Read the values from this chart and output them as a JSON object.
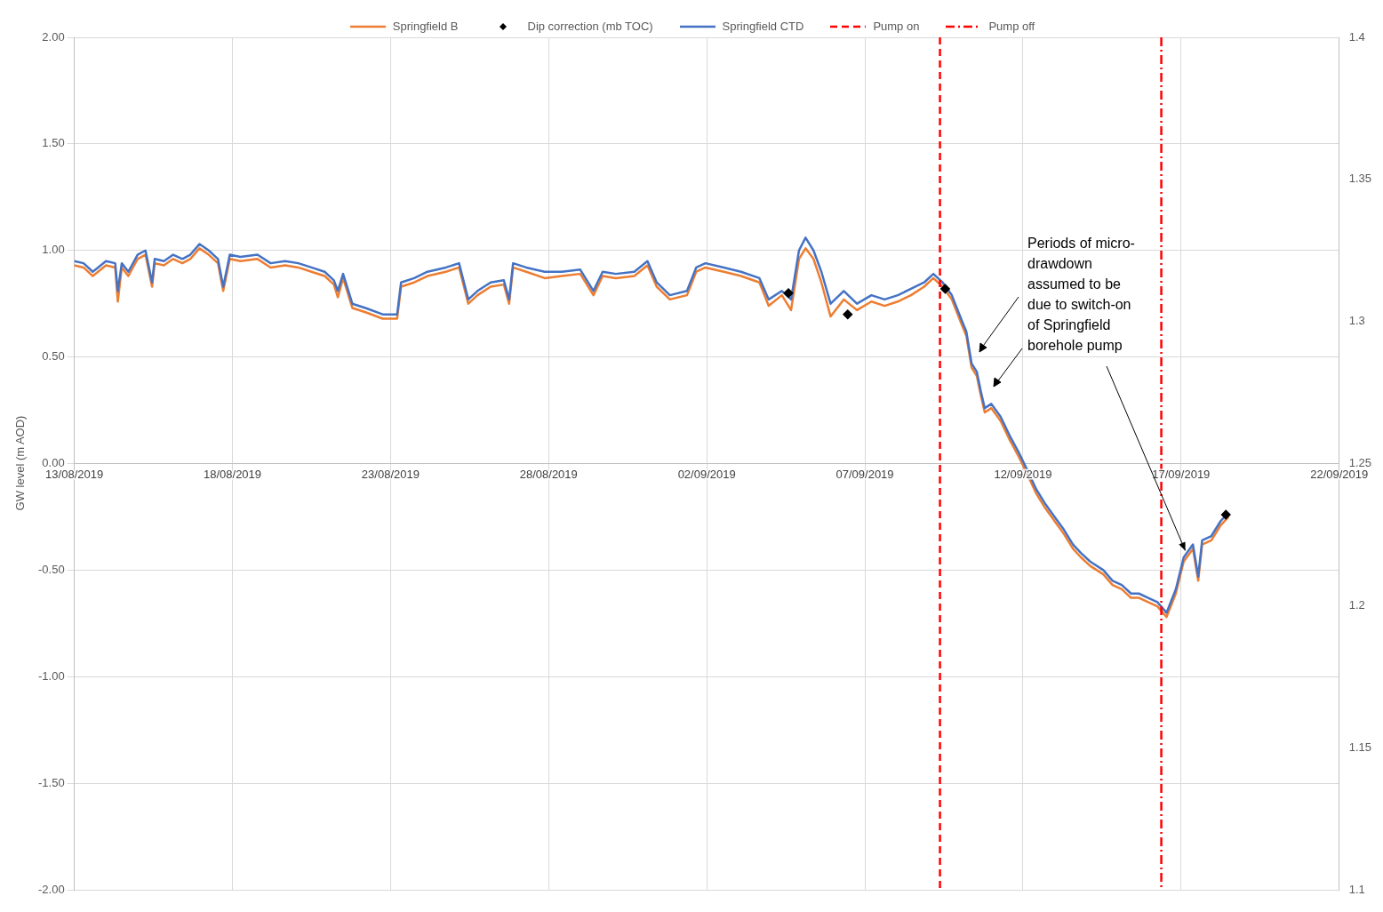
{
  "chart_data": {
    "type": "line",
    "ylabel": "GW level (m AOD)",
    "xlim": [
      "2019-08-13",
      "2019-09-22"
    ],
    "xticks": [
      {
        "value": "2019-08-13",
        "label": "13/08/2019"
      },
      {
        "value": "2019-08-18",
        "label": "18/08/2019"
      },
      {
        "value": "2019-08-23",
        "label": "23/08/2019"
      },
      {
        "value": "2019-08-28",
        "label": "28/08/2019"
      },
      {
        "value": "2019-09-02",
        "label": "02/09/2019"
      },
      {
        "value": "2019-09-07",
        "label": "07/09/2019"
      },
      {
        "value": "2019-09-12",
        "label": "12/09/2019"
      },
      {
        "value": "2019-09-17",
        "label": "17/09/2019"
      },
      {
        "value": "2019-09-22",
        "label": "22/09/2019"
      }
    ],
    "ylim": [
      -2,
      2
    ],
    "yticks": [
      {
        "value": -2,
        "label": "-2.00"
      },
      {
        "value": -1.5,
        "label": "-1.50"
      },
      {
        "value": -1,
        "label": "-1.00"
      },
      {
        "value": -0.5,
        "label": "-0.50"
      },
      {
        "value": 0,
        "label": "0.00"
      },
      {
        "value": 0.5,
        "label": "0.50"
      },
      {
        "value": 1,
        "label": "1.00"
      },
      {
        "value": 1.5,
        "label": "1.50"
      },
      {
        "value": 2,
        "label": "2.00"
      }
    ],
    "y2lim": [
      1.1,
      1.4
    ],
    "y2ticks": [
      1.1,
      1.15,
      1.2,
      1.25,
      1.3,
      1.35,
      1.4
    ],
    "grid": true,
    "legend": "top",
    "line_style": "solid",
    "marker": "none",
    "x": [
      "2019-08-13T00:00",
      "2019-08-13T07:00",
      "2019-08-13T14:00",
      "2019-08-13T18:00",
      "2019-08-14T00:00",
      "2019-08-14T07:00",
      "2019-08-14T09:00",
      "2019-08-14T12:00",
      "2019-08-14T17:00",
      "2019-08-15T00:00",
      "2019-08-15T06:00",
      "2019-08-15T11:00",
      "2019-08-15T13:00",
      "2019-08-15T20:00",
      "2019-08-16T03:00",
      "2019-08-16T10:00",
      "2019-08-16T16:00",
      "2019-08-16T23:00",
      "2019-08-17T06:00",
      "2019-08-17T13:00",
      "2019-08-17T17:00",
      "2019-08-17T22:00",
      "2019-08-18T06:00",
      "2019-08-18T19:00",
      "2019-08-19T05:00",
      "2019-08-19T16:00",
      "2019-08-20T02:00",
      "2019-08-20T12:00",
      "2019-08-20T22:00",
      "2019-08-21T05:00",
      "2019-08-21T08:00",
      "2019-08-21T12:00",
      "2019-08-21T19:00",
      "2019-08-22T05:00",
      "2019-08-22T18:00",
      "2019-08-23T05:00",
      "2019-08-23T08:00",
      "2019-08-23T18:00",
      "2019-08-24T04:00",
      "2019-08-24T18:00",
      "2019-08-25T04:00",
      "2019-08-25T11:00",
      "2019-08-25T18:00",
      "2019-08-26T04:00",
      "2019-08-26T14:00",
      "2019-08-26T18:00",
      "2019-08-26T21:00",
      "2019-08-27T07:00",
      "2019-08-27T21:00",
      "2019-08-28T10:00",
      "2019-08-29T00:00",
      "2019-08-29T10:00",
      "2019-08-29T17:00",
      "2019-08-30T03:00",
      "2019-08-30T17:00",
      "2019-08-31T03:00",
      "2019-08-31T10:00",
      "2019-08-31T20:00",
      "2019-09-01T09:00",
      "2019-09-01T16:00",
      "2019-09-01T23:00",
      "2019-09-02T13:00",
      "2019-09-03T02:00",
      "2019-09-03T16:00",
      "2019-09-03T23:00",
      "2019-09-04T09:00",
      "2019-09-04T16:00",
      "2019-09-04T22:00",
      "2019-09-05T03:00",
      "2019-09-05T09:00",
      "2019-09-05T15:00",
      "2019-09-05T22:00",
      "2019-09-06T08:00",
      "2019-09-06T18:00",
      "2019-09-07T05:00",
      "2019-09-07T15:00",
      "2019-09-08T01:00",
      "2019-09-08T11:00",
      "2019-09-08T21:00",
      "2019-09-09T04:00",
      "2019-09-09T11:00",
      "2019-09-09T18:00",
      "2019-09-10T01:00",
      "2019-09-10T05:00",
      "2019-09-10T09:00",
      "2019-09-10T13:00",
      "2019-09-10T16:00",
      "2019-09-10T19:00",
      "2019-09-11T00:00",
      "2019-09-11T07:00",
      "2019-09-11T14:00",
      "2019-09-11T21:00",
      "2019-09-12T04:00",
      "2019-09-12T10:00",
      "2019-09-12T17:00",
      "2019-09-13T00:00",
      "2019-09-13T07:00",
      "2019-09-13T14:00",
      "2019-09-13T20:00",
      "2019-09-14T03:00",
      "2019-09-14T13:00",
      "2019-09-14T20:00",
      "2019-09-15T03:00",
      "2019-09-15T10:00",
      "2019-09-15T16:00",
      "2019-09-15T23:00",
      "2019-09-16T06:00",
      "2019-09-16T13:00",
      "2019-09-16T20:00",
      "2019-09-17T02:00",
      "2019-09-17T09:00",
      "2019-09-17T13:00",
      "2019-09-17T16:00",
      "2019-09-17T23:00",
      "2019-09-18T06:00",
      "2019-09-18T12:00"
    ],
    "series": [
      {
        "name": "Springfield B",
        "color": "#ed7d31",
        "values": [
          0.93,
          0.92,
          0.88,
          0.9,
          0.93,
          0.92,
          0.76,
          0.92,
          0.88,
          0.96,
          0.98,
          0.83,
          0.94,
          0.93,
          0.96,
          0.94,
          0.96,
          1.01,
          0.98,
          0.94,
          0.81,
          0.96,
          0.95,
          0.96,
          0.92,
          0.93,
          0.92,
          0.9,
          0.88,
          0.84,
          0.78,
          0.87,
          0.73,
          0.71,
          0.68,
          0.68,
          0.83,
          0.85,
          0.88,
          0.9,
          0.92,
          0.75,
          0.79,
          0.83,
          0.84,
          0.75,
          0.92,
          0.9,
          0.87,
          0.88,
          0.89,
          0.79,
          0.88,
          0.87,
          0.88,
          0.93,
          0.83,
          0.77,
          0.79,
          0.9,
          0.92,
          0.9,
          0.88,
          0.85,
          0.74,
          0.79,
          0.72,
          0.96,
          1.01,
          0.96,
          0.85,
          0.69,
          0.77,
          0.72,
          0.76,
          0.74,
          0.76,
          0.79,
          0.83,
          0.87,
          0.83,
          0.77,
          0.66,
          0.6,
          0.45,
          0.41,
          0.32,
          0.24,
          0.26,
          0.2,
          0.11,
          0.03,
          -0.06,
          -0.14,
          -0.21,
          -0.27,
          -0.33,
          -0.4,
          -0.44,
          -0.48,
          -0.52,
          -0.57,
          -0.59,
          -0.63,
          -0.63,
          -0.65,
          -0.67,
          -0.72,
          -0.61,
          -0.46,
          -0.4,
          -0.55,
          -0.38,
          -0.36,
          -0.29,
          -0.25
        ]
      },
      {
        "name": "Dip correction (mb TOC)",
        "type": "scatter",
        "marker": "diamond",
        "color": "#000000",
        "x": [
          "2019-09-04T14:00",
          "2019-09-06T11:00",
          "2019-09-09T13:00",
          "2019-09-18T10:00"
        ],
        "values": [
          0.8,
          0.7,
          0.82,
          -0.24
        ]
      },
      {
        "name": "Springfield CTD",
        "color": "#4472c4",
        "values": [
          0.95,
          0.94,
          0.9,
          0.92,
          0.95,
          0.94,
          0.81,
          0.94,
          0.9,
          0.98,
          1.0,
          0.85,
          0.96,
          0.95,
          0.98,
          0.96,
          0.98,
          1.03,
          1.0,
          0.96,
          0.83,
          0.98,
          0.97,
          0.98,
          0.94,
          0.95,
          0.94,
          0.92,
          0.9,
          0.86,
          0.81,
          0.89,
          0.75,
          0.73,
          0.7,
          0.7,
          0.85,
          0.87,
          0.9,
          0.92,
          0.94,
          0.77,
          0.81,
          0.85,
          0.86,
          0.77,
          0.94,
          0.92,
          0.9,
          0.9,
          0.91,
          0.81,
          0.9,
          0.89,
          0.9,
          0.95,
          0.85,
          0.79,
          0.81,
          0.92,
          0.94,
          0.92,
          0.9,
          0.87,
          0.77,
          0.81,
          0.77,
          1.0,
          1.06,
          1.0,
          0.9,
          0.75,
          0.81,
          0.75,
          0.79,
          0.77,
          0.79,
          0.82,
          0.85,
          0.89,
          0.85,
          0.79,
          0.68,
          0.62,
          0.47,
          0.43,
          0.34,
          0.26,
          0.28,
          0.22,
          0.13,
          0.05,
          -0.04,
          -0.12,
          -0.19,
          -0.25,
          -0.31,
          -0.38,
          -0.42,
          -0.46,
          -0.5,
          -0.55,
          -0.57,
          -0.61,
          -0.61,
          -0.63,
          -0.65,
          -0.7,
          -0.59,
          -0.44,
          -0.38,
          -0.53,
          -0.36,
          -0.34,
          -0.27,
          -0.23
        ]
      }
    ],
    "ref_lines": [
      {
        "axis": "x",
        "value": "2019-09-09T09:00",
        "label": "Pump on",
        "color": "#ff0000",
        "line_style": "dashed"
      },
      {
        "axis": "x",
        "value": "2019-09-16T09:00",
        "label": "Pump off",
        "color": "#ff0000",
        "line_style": "dashdot"
      }
    ],
    "annotations": [
      {
        "text": "Periods of micro-\ndrawdown\nassumed to be\ndue to switch-on\nof Springfield\nborehole pump",
        "x": "2019-09-17T04:00",
        "y": -0.42
      }
    ]
  }
}
